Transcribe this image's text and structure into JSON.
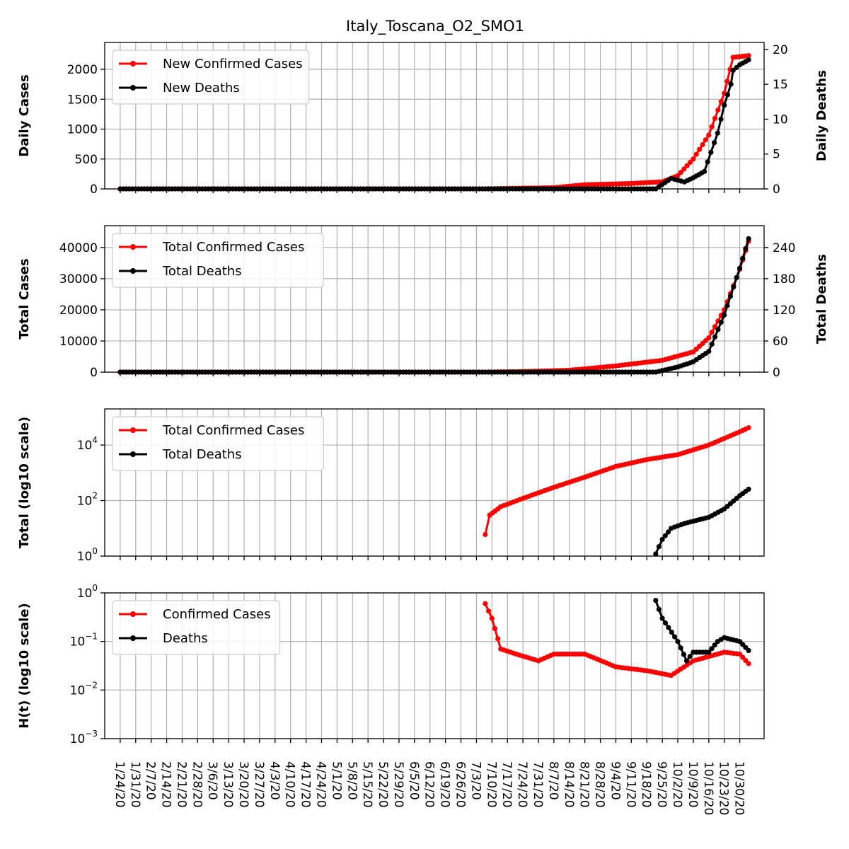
{
  "chart_data": [
    {
      "type": "line",
      "title": "Italy_Toscana_O2_SMO1",
      "ylabel": "Daily Cases",
      "y2label": "Daily Deaths",
      "ylim": [
        0,
        2450
      ],
      "y2lim": [
        0,
        21
      ],
      "yticks": [
        "0",
        "500",
        "1000",
        "1500",
        "2000"
      ],
      "y2ticks": [
        "0",
        "5",
        "10",
        "15",
        "20"
      ],
      "grid": true,
      "legend_position": "top-left",
      "series": [
        {
          "name": "New Confirmed Cases",
          "axis": "left",
          "color": "#ff0000",
          "points": [
            [
              "1/24/20",
              0
            ],
            [
              "7/7/20",
              0
            ],
            [
              "7/21/20",
              10
            ],
            [
              "8/7/20",
              20
            ],
            [
              "8/21/20",
              70
            ],
            [
              "9/11/20",
              90
            ],
            [
              "9/25/20",
              120
            ],
            [
              "10/2/20",
              220
            ],
            [
              "10/9/20",
              500
            ],
            [
              "10/16/20",
              900
            ],
            [
              "10/23/20",
              1600
            ],
            [
              "10/27/20",
              2200
            ],
            [
              "11/3/20",
              2230
            ]
          ]
        },
        {
          "name": "New Deaths",
          "axis": "right",
          "color": "#000000",
          "points": [
            [
              "1/24/20",
              0
            ],
            [
              "9/22/20",
              0
            ],
            [
              "9/29/20",
              1.5
            ],
            [
              "10/5/20",
              1.0
            ],
            [
              "10/9/20",
              1.6
            ],
            [
              "10/14/20",
              2.5
            ],
            [
              "10/20/20",
              8
            ],
            [
              "10/23/20",
              12
            ],
            [
              "10/26/20",
              15
            ],
            [
              "10/27/20",
              17
            ],
            [
              "10/30/20",
              17.8
            ],
            [
              "11/3/20",
              18.5
            ]
          ]
        }
      ]
    },
    {
      "type": "line",
      "ylabel": "Total Cases",
      "y2label": "Total Deaths",
      "ylim": [
        0,
        47000
      ],
      "y2lim": [
        0,
        282
      ],
      "yticks": [
        "0",
        "10000",
        "20000",
        "30000",
        "40000"
      ],
      "y2ticks": [
        "0",
        "60",
        "120",
        "180",
        "240"
      ],
      "grid": true,
      "legend_position": "top-left",
      "series": [
        {
          "name": "Total Confirmed Cases",
          "axis": "left",
          "color": "#ff0000",
          "points": [
            [
              "1/24/20",
              0
            ],
            [
              "7/7/20",
              0
            ],
            [
              "7/24/20",
              200
            ],
            [
              "8/14/20",
              600
            ],
            [
              "9/4/20",
              2000
            ],
            [
              "9/25/20",
              3800
            ],
            [
              "10/9/20",
              6500
            ],
            [
              "10/16/20",
              11000
            ],
            [
              "10/23/20",
              20000
            ],
            [
              "10/30/20",
              33000
            ],
            [
              "11/3/20",
              42000
            ]
          ]
        },
        {
          "name": "Total Deaths",
          "axis": "right",
          "color": "#000000",
          "points": [
            [
              "1/24/20",
              0
            ],
            [
              "9/22/20",
              0
            ],
            [
              "10/2/20",
              10
            ],
            [
              "10/9/20",
              20
            ],
            [
              "10/16/20",
              40
            ],
            [
              "10/23/20",
              110
            ],
            [
              "10/30/20",
              200
            ],
            [
              "11/3/20",
              257
            ]
          ]
        }
      ]
    },
    {
      "type": "line",
      "ylabel": "Total (log10 scale)",
      "yscale": "log",
      "ylim": [
        1,
        200000
      ],
      "yticks": [
        {
          "base": "10",
          "exp": "0"
        },
        {
          "base": "10",
          "exp": "2"
        },
        {
          "base": "10",
          "exp": "4"
        }
      ],
      "grid": true,
      "legend_position": "top-left",
      "series": [
        {
          "name": "Total Confirmed Cases",
          "color": "#ff0000",
          "points": [
            [
              "7/7/20",
              6
            ],
            [
              "7/9/20",
              30
            ],
            [
              "7/14/20",
              60
            ],
            [
              "7/24/20",
              120
            ],
            [
              "8/7/20",
              300
            ],
            [
              "8/21/20",
              700
            ],
            [
              "9/4/20",
              1700
            ],
            [
              "9/18/20",
              3000
            ],
            [
              "10/2/20",
              4500
            ],
            [
              "10/16/20",
              10000
            ],
            [
              "10/30/20",
              30000
            ],
            [
              "11/3/20",
              42000
            ]
          ]
        },
        {
          "name": "Total Deaths",
          "color": "#000000",
          "points": [
            [
              "9/22/20",
              1.2
            ],
            [
              "9/25/20",
              4
            ],
            [
              "9/29/20",
              10
            ],
            [
              "10/5/20",
              15
            ],
            [
              "10/16/20",
              25
            ],
            [
              "10/23/20",
              50
            ],
            [
              "10/30/20",
              150
            ],
            [
              "11/3/20",
              257
            ]
          ]
        }
      ]
    },
    {
      "type": "line",
      "ylabel": "H(t) (log10 scale)",
      "yscale": "log",
      "ylim": [
        0.001,
        1
      ],
      "yticks": [
        {
          "base": "10",
          "exp": "−3"
        },
        {
          "base": "10",
          "exp": "−2"
        },
        {
          "base": "10",
          "exp": "−1"
        },
        {
          "base": "10",
          "exp": "0"
        }
      ],
      "grid": true,
      "legend_position": "top-left",
      "series": [
        {
          "name": "Confirmed Cases",
          "color": "#ff0000",
          "points": [
            [
              "7/7/20",
              0.6
            ],
            [
              "7/10/20",
              0.3
            ],
            [
              "7/14/20",
              0.07
            ],
            [
              "7/21/20",
              0.055
            ],
            [
              "7/31/20",
              0.04
            ],
            [
              "8/7/20",
              0.055
            ],
            [
              "8/21/20",
              0.055
            ],
            [
              "9/4/20",
              0.03
            ],
            [
              "9/18/20",
              0.025
            ],
            [
              "9/29/20",
              0.02
            ],
            [
              "10/9/20",
              0.04
            ],
            [
              "10/23/20",
              0.06
            ],
            [
              "10/30/20",
              0.055
            ],
            [
              "11/3/20",
              0.035
            ]
          ]
        },
        {
          "name": "Deaths",
          "color": "#000000",
          "points": [
            [
              "9/22/20",
              0.7
            ],
            [
              "9/25/20",
              0.3
            ],
            [
              "10/2/20",
              0.1
            ],
            [
              "10/6/20",
              0.04
            ],
            [
              "10/9/20",
              0.06
            ],
            [
              "10/16/20",
              0.06
            ],
            [
              "10/20/20",
              0.1
            ],
            [
              "10/23/20",
              0.12
            ],
            [
              "10/30/20",
              0.1
            ],
            [
              "11/3/20",
              0.065
            ]
          ]
        }
      ]
    }
  ],
  "x_tick_labels": [
    "1/24/20",
    "1/31/20",
    "2/7/20",
    "2/14/20",
    "2/21/20",
    "2/28/20",
    "3/6/20",
    "3/13/20",
    "3/20/20",
    "3/27/20",
    "4/3/20",
    "4/10/20",
    "4/17/20",
    "4/24/20",
    "5/1/20",
    "5/8/20",
    "5/15/20",
    "5/22/20",
    "5/29/20",
    "6/5/20",
    "6/12/20",
    "6/19/20",
    "6/26/20",
    "7/3/20",
    "7/10/20",
    "7/17/20",
    "7/24/20",
    "7/31/20",
    "8/7/20",
    "8/14/20",
    "8/21/20",
    "8/28/20",
    "9/4/20",
    "9/11/20",
    "9/18/20",
    "9/25/20",
    "10/2/20",
    "10/9/20",
    "10/16/20",
    "10/23/20",
    "10/30/20"
  ],
  "x_range": [
    "1/17/20",
    "11/10/20"
  ],
  "colors": {
    "cases": "#ff0000",
    "deaths": "#000000",
    "grid": "#b0b0b0"
  }
}
